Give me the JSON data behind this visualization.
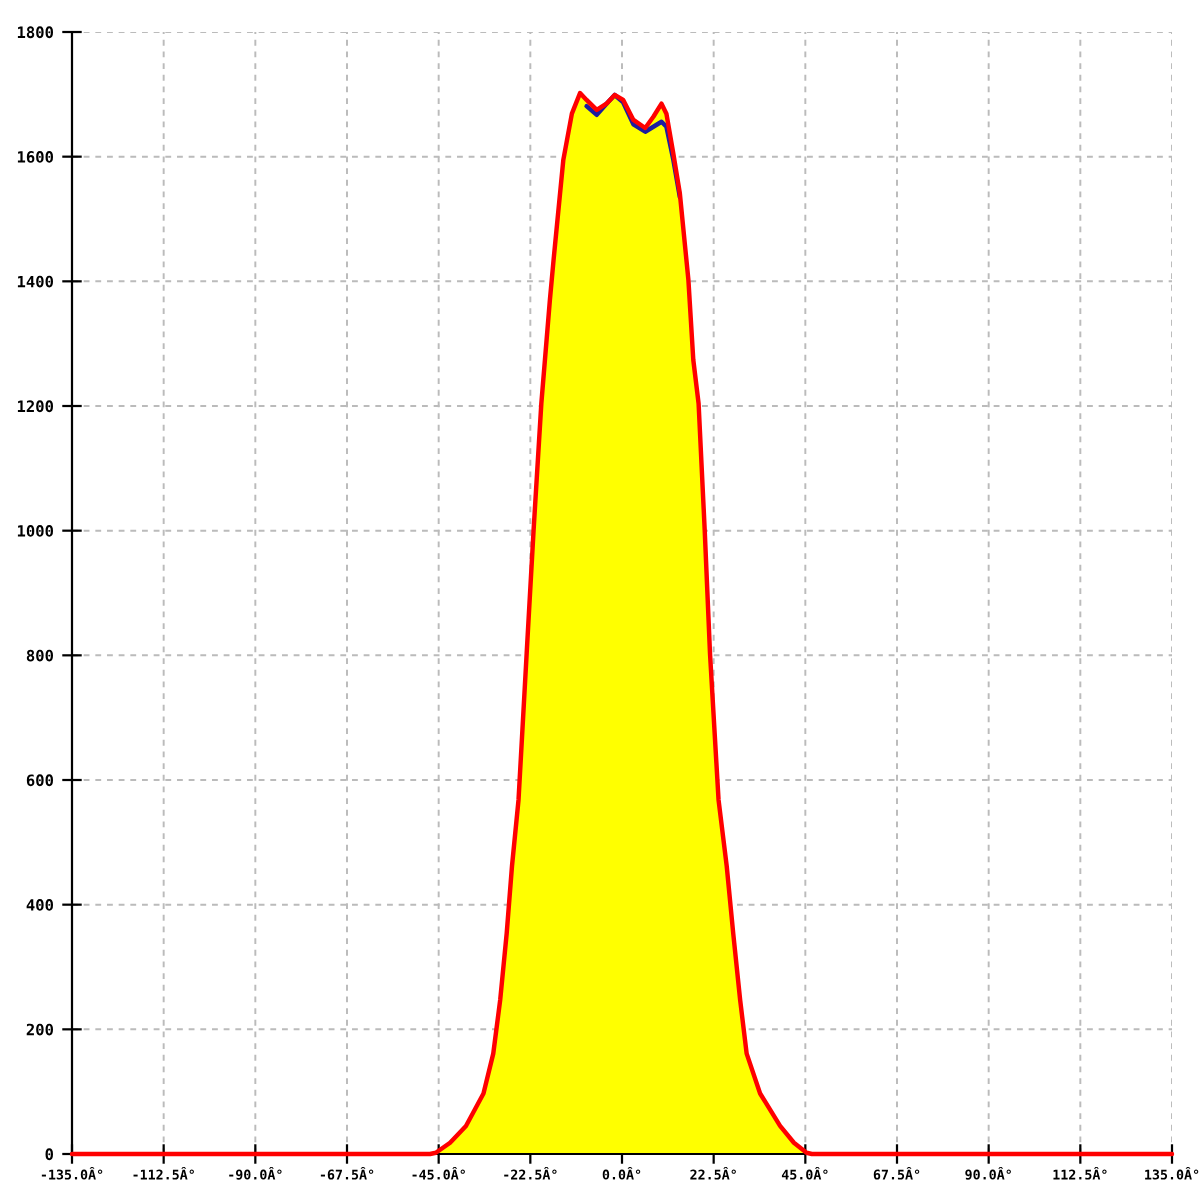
{
  "chart_data": {
    "type": "line",
    "xlim": [
      -135,
      135
    ],
    "xticks": [
      {
        "value": -135,
        "label": "-135.0Â°"
      },
      {
        "value": -112.5,
        "label": "-112.5Â°"
      },
      {
        "value": -90,
        "label": "-90.0Â°"
      },
      {
        "value": -67.5,
        "label": "-67.5Â°"
      },
      {
        "value": -45,
        "label": "-45.0Â°"
      },
      {
        "value": -22.5,
        "label": "-22.5Â°"
      },
      {
        "value": 0,
        "label": "0.0Â°"
      },
      {
        "value": 22.5,
        "label": "22.5Â°"
      },
      {
        "value": 45,
        "label": "45.0Â°"
      },
      {
        "value": 67.5,
        "label": "67.5Â°"
      },
      {
        "value": 90,
        "label": "90.0Â°"
      },
      {
        "value": 112.5,
        "label": "112.5Â°"
      },
      {
        "value": 135,
        "label": "135.0Â°"
      }
    ],
    "ylim": [
      0,
      1800
    ],
    "yticks": [
      0,
      200,
      400,
      600,
      800,
      1000,
      1200,
      1400,
      1600,
      1800
    ],
    "grid": true,
    "x": [
      -135,
      -47.1,
      -45.7,
      -42.2,
      -38.3,
      -34.0,
      -31.6,
      -29.9,
      -28.3,
      -27.0,
      -25.4,
      -23.4,
      -21.7,
      -19.8,
      -17.7,
      -16.8,
      -14.4,
      -12.3,
      -10.3,
      -8.7,
      -6.2,
      -3.8,
      -1.8,
      0.3,
      2.8,
      5.7,
      7.7,
      9.7,
      10.9,
      12.6,
      14.2,
      16.3,
      17.5,
      18.8,
      20.3,
      21.6,
      23.7,
      25.7,
      27.3,
      29.0,
      30.6,
      33.9,
      38.8,
      42.2,
      45.3,
      46.6,
      135
    ],
    "series": [
      {
        "type": "area",
        "color": "#ffff00",
        "x": [
          -47.1,
          -45.7,
          -42.2,
          -38.3,
          -34.0,
          -31.6,
          -29.9,
          -28.3,
          -27.0,
          -25.4,
          -23.4,
          -21.7,
          -19.8,
          -17.7,
          -16.8,
          -14.4,
          -12.3,
          -10.3,
          -8.7,
          -6.2,
          -3.8,
          -1.8,
          0.3,
          2.8,
          5.7,
          7.7,
          9.7,
          10.9,
          12.6,
          14.2,
          16.3,
          17.5,
          18.8,
          20.3,
          21.6,
          23.7,
          25.7,
          27.3,
          29.0,
          30.6,
          33.9,
          38.8,
          42.2,
          45.3,
          46.6
        ],
        "values": [
          0,
          2,
          18,
          45,
          97,
          161,
          247,
          354,
          462,
          568,
          803,
          1001,
          1204,
          1370,
          1434,
          1595,
          1669,
          1702,
          1691,
          1675,
          1685,
          1699,
          1691,
          1659,
          1646,
          1664,
          1685,
          1669,
          1605,
          1541,
          1402,
          1274,
          1204,
          1001,
          803,
          568,
          462,
          354,
          247,
          161,
          97,
          45,
          18,
          2,
          0
        ]
      },
      {
        "color": "#1c1ca0",
        "values": [
          null,
          null,
          null,
          null,
          null,
          null,
          null,
          null,
          null,
          null,
          null,
          null,
          null,
          null,
          null,
          null,
          null,
          null,
          null,
          1681,
          1667,
          1685,
          1699,
          1687,
          1652,
          1640,
          1648,
          1656,
          1648,
          1595,
          1535,
          null,
          null,
          null,
          null,
          null,
          null,
          null,
          null,
          null,
          null,
          null,
          null,
          null,
          null,
          null,
          null
        ]
      },
      {
        "color": "#ff0000",
        "values": [
          0,
          0,
          2,
          18,
          45,
          97,
          161,
          247,
          354,
          462,
          568,
          803,
          1001,
          1204,
          1370,
          1434,
          1595,
          1669,
          1702,
          1691,
          1675,
          1685,
          1699,
          1691,
          1659,
          1646,
          1664,
          1685,
          1669,
          1605,
          1541,
          1402,
          1274,
          1204,
          1001,
          803,
          568,
          462,
          354,
          247,
          161,
          97,
          45,
          18,
          2,
          0,
          0
        ]
      }
    ]
  }
}
